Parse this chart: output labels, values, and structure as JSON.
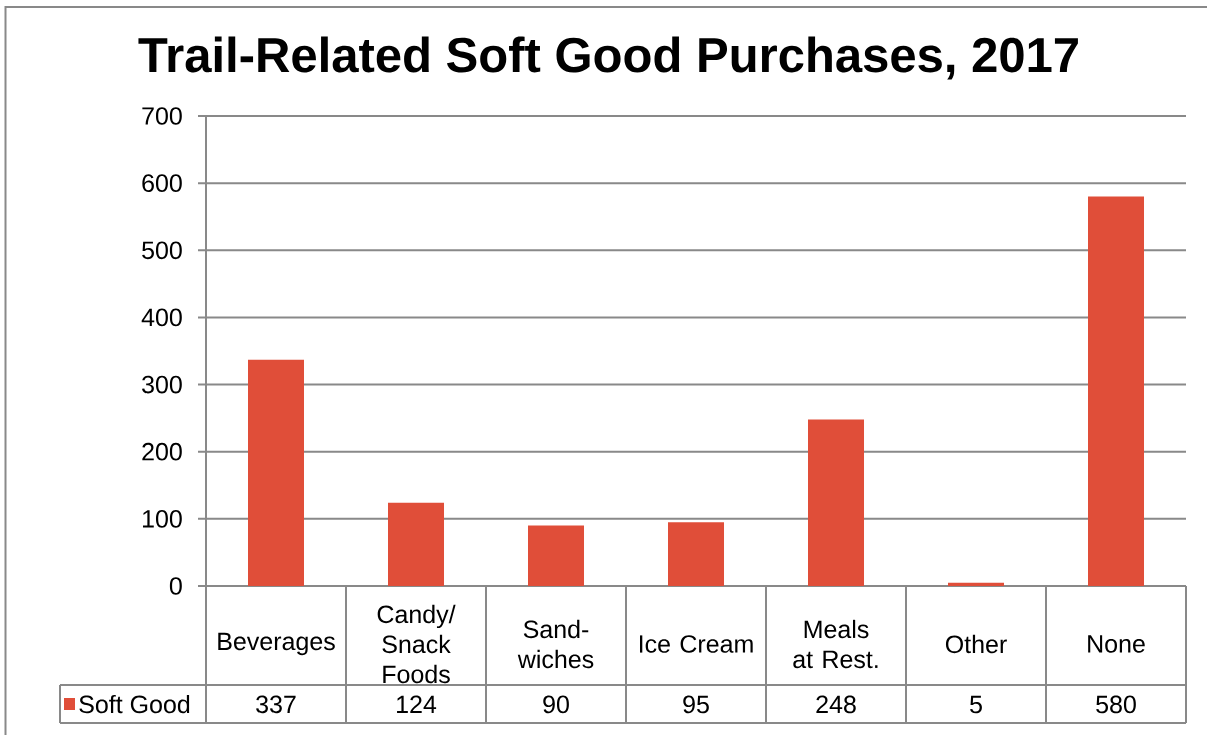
{
  "chart_data": {
    "type": "bar",
    "title": "Trail-Related Soft Good Purchases, 2017",
    "categories": [
      "Beverages",
      "Candy/ Snack Foods",
      "Sand-wiches",
      "Ice Cream",
      "Meals at Rest.",
      "Other",
      "None"
    ],
    "series": [
      {
        "name": "Soft Good",
        "color": "#e04e39",
        "values": [
          337,
          124,
          90,
          95,
          248,
          5,
          580
        ]
      }
    ],
    "ylim": [
      0,
      700
    ],
    "yticks": [
      0,
      100,
      200,
      300,
      400,
      500,
      600,
      700
    ],
    "grid": "y",
    "legend": "bottom left",
    "data_labels": true
  }
}
